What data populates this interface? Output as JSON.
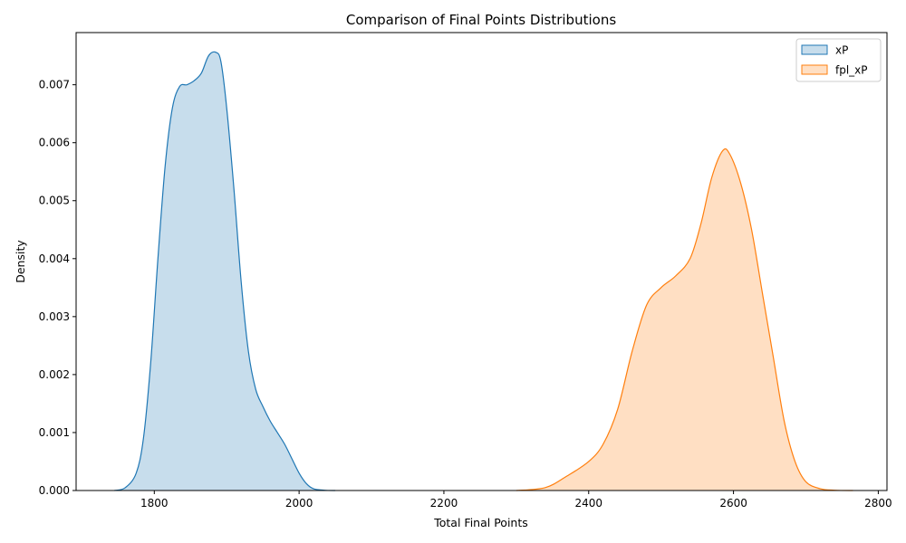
{
  "chart_data": {
    "type": "area",
    "title": "Comparison of Final Points Distributions",
    "xlabel": "Total Final Points",
    "ylabel": "Density",
    "xlim": [
      1692,
      2812
    ],
    "ylim": [
      0,
      0.0079
    ],
    "xticks": [
      1800,
      2000,
      2200,
      2400,
      2600,
      2800
    ],
    "yticks": [
      0.0,
      0.001,
      0.002,
      0.003,
      0.004,
      0.005,
      0.006,
      0.007
    ],
    "ytick_labels": [
      "0.000",
      "0.001",
      "0.002",
      "0.003",
      "0.004",
      "0.005",
      "0.006",
      "0.007"
    ],
    "grid": false,
    "legend_position": "top-right",
    "series": [
      {
        "name": "xP",
        "color": "#1f77b4",
        "x": [
          1745,
          1760,
          1775,
          1785,
          1795,
          1805,
          1815,
          1825,
          1835,
          1845,
          1855,
          1865,
          1875,
          1885,
          1892,
          1900,
          1910,
          1920,
          1930,
          1940,
          1950,
          1960,
          1970,
          1980,
          1990,
          2000,
          2010,
          2020,
          2035,
          2050
        ],
        "y": [
          0,
          5e-05,
          0.0003,
          0.0009,
          0.0022,
          0.004,
          0.0056,
          0.0066,
          0.00697,
          0.007,
          0.00707,
          0.0072,
          0.0075,
          0.00756,
          0.0074,
          0.0066,
          0.0052,
          0.0036,
          0.0024,
          0.00175,
          0.00145,
          0.0012,
          0.001,
          0.0008,
          0.00055,
          0.0003,
          0.00012,
          3e-05,
          5e-06,
          0
        ]
      },
      {
        "name": "fpl_xP",
        "color": "#ff7f0e",
        "x": [
          2300,
          2340,
          2370,
          2400,
          2420,
          2440,
          2460,
          2480,
          2500,
          2520,
          2540,
          2555,
          2570,
          2585,
          2595,
          2610,
          2625,
          2640,
          2655,
          2670,
          2685,
          2700,
          2720,
          2740,
          2765
        ],
        "y": [
          0,
          5e-05,
          0.00025,
          0.0005,
          0.0008,
          0.0014,
          0.0024,
          0.0032,
          0.0035,
          0.0037,
          0.004,
          0.0046,
          0.0054,
          0.00586,
          0.0058,
          0.0053,
          0.0045,
          0.0034,
          0.0023,
          0.0012,
          0.0005,
          0.00015,
          3e-05,
          5e-06,
          0
        ]
      }
    ]
  }
}
